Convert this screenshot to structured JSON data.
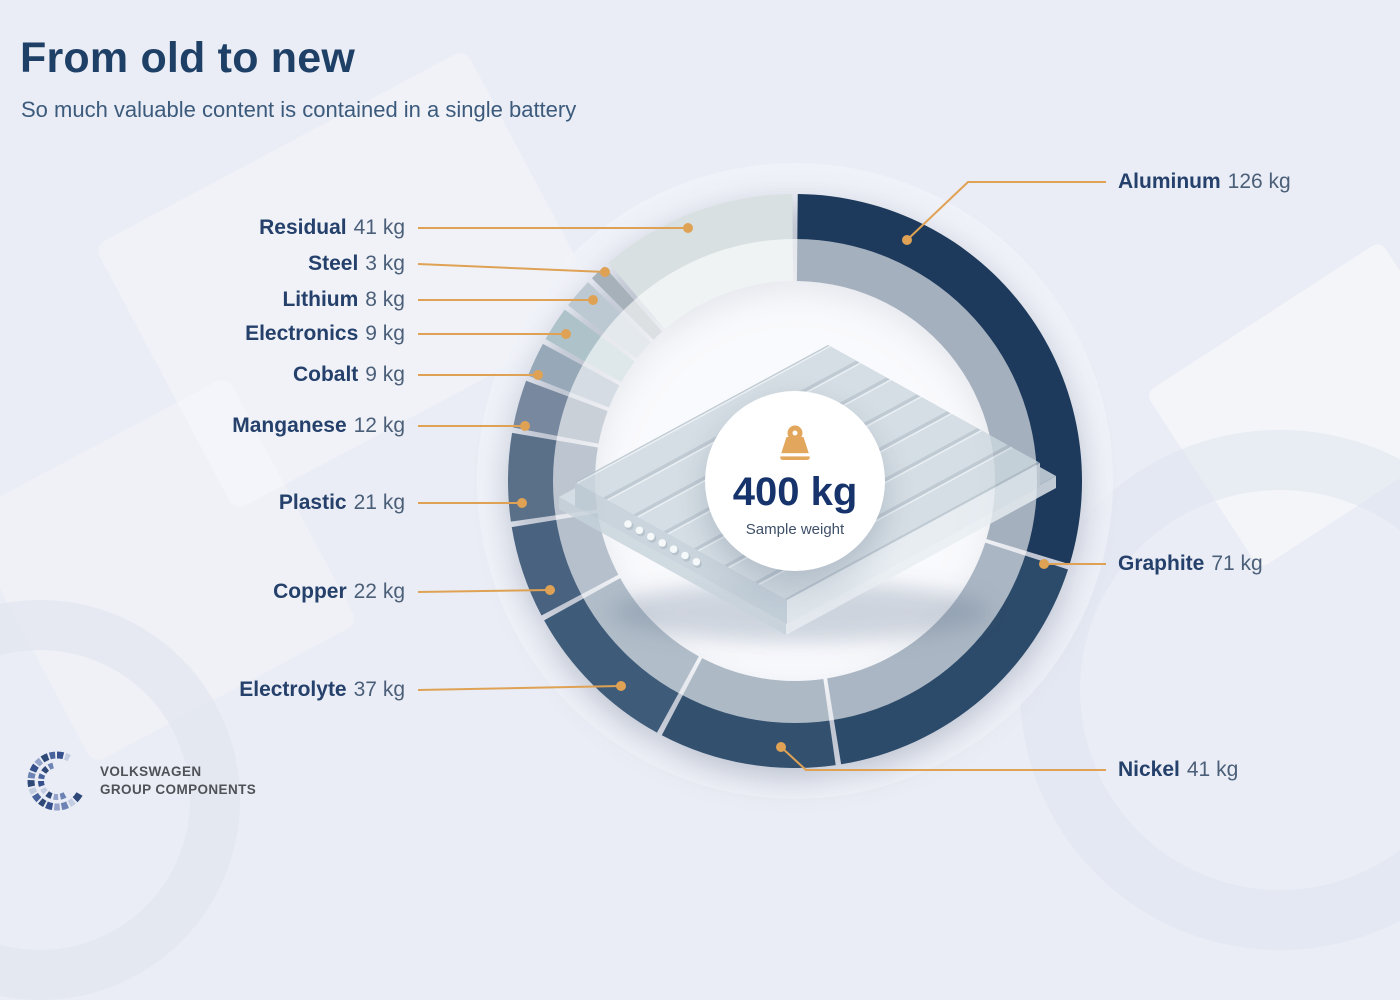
{
  "header": {
    "title": "From old to new",
    "subtitle": "So much valuable content is contained in a single battery"
  },
  "chart_data": {
    "type": "donut",
    "unit": "kg",
    "total_value_kg": 400,
    "center_label": "400 kg",
    "center_caption": "Sample weight",
    "legend_position": "around",
    "leader_line_color": "#dfa255",
    "segments": [
      {
        "label": "Aluminum",
        "value_kg": 126,
        "value_text": "126 kg",
        "color": "#1d3a5c"
      },
      {
        "label": "Graphite",
        "value_kg": 71,
        "value_text": "71 kg",
        "color": "#2c4a69"
      },
      {
        "label": "Nickel",
        "value_kg": 41,
        "value_text": "41 kg",
        "color": "#33516f"
      },
      {
        "label": "Electrolyte",
        "value_kg": 37,
        "value_text": "37 kg",
        "color": "#3e5b79"
      },
      {
        "label": "Copper",
        "value_kg": 22,
        "value_text": "22 kg",
        "color": "#486280"
      },
      {
        "label": "Plastic",
        "value_kg": 21,
        "value_text": "21 kg",
        "color": "#5a7089"
      },
      {
        "label": "Manganese",
        "value_kg": 12,
        "value_text": "12 kg",
        "color": "#78899f"
      },
      {
        "label": "Cobalt",
        "value_kg": 9,
        "value_text": "9 kg",
        "color": "#97a9b8"
      },
      {
        "label": "Electronics",
        "value_kg": 9,
        "value_text": "9 kg",
        "color": "#adc2c9"
      },
      {
        "label": "Lithium",
        "value_kg": 8,
        "value_text": "8 kg",
        "color": "#bcc9d3"
      },
      {
        "label": "Steel",
        "value_kg": 3,
        "value_text": "3 kg",
        "color": "#a7b1ba"
      },
      {
        "label": "Residual",
        "value_kg": 41,
        "value_text": "41 kg",
        "color": "#d8e0e1"
      }
    ]
  },
  "center": {
    "weight": "400 kg",
    "caption": "Sample weight",
    "icon": "weight-icon",
    "icon_color": "#e2a75c"
  },
  "logo": {
    "line1": "VOLKSWAGEN",
    "line2": "GROUP COMPONENTS",
    "mark_colors": [
      "#2e4878",
      "#6c83b4",
      "#c3cde2",
      "#35508c",
      "#94a3ca",
      "#47629c"
    ]
  },
  "colors": {
    "background": "#eaedf5",
    "title": "#1f4066",
    "subtitle": "#3b5a7c",
    "label_name": "#24406b",
    "label_value": "#4b5f79",
    "accent": "#dfa255"
  }
}
